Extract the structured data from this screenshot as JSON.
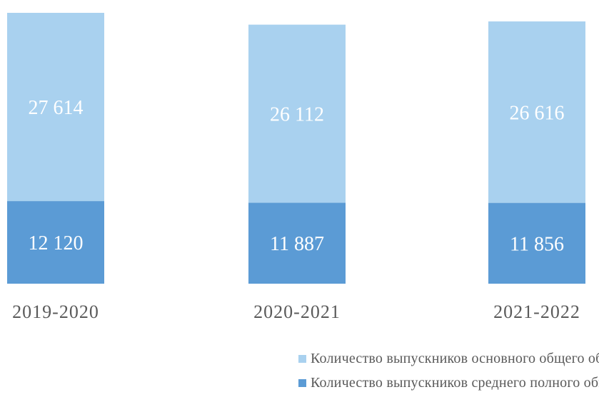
{
  "chart_data": {
    "type": "bar",
    "stacked": true,
    "categories": [
      "2019-2020",
      "2020-2021",
      "2021-2022"
    ],
    "series": [
      {
        "name": "Количество выпускников основного общего образования",
        "values": [
          27614,
          26112,
          26616
        ],
        "labels": [
          "27 614",
          "26 112",
          "26 616"
        ],
        "color": "#a9d1ef"
      },
      {
        "name": "Количество выпускников среднего полного общего образования",
        "values": [
          12120,
          11887,
          11856
        ],
        "labels": [
          "12 120",
          "11 887",
          "11 856"
        ],
        "color": "#5b9bd5"
      }
    ],
    "title": "",
    "xlabel": "",
    "ylabel": "",
    "grid": false,
    "legend_position": "bottom-right",
    "label_color": "#ffffff",
    "tick_label_color": "#5a5a5a"
  }
}
